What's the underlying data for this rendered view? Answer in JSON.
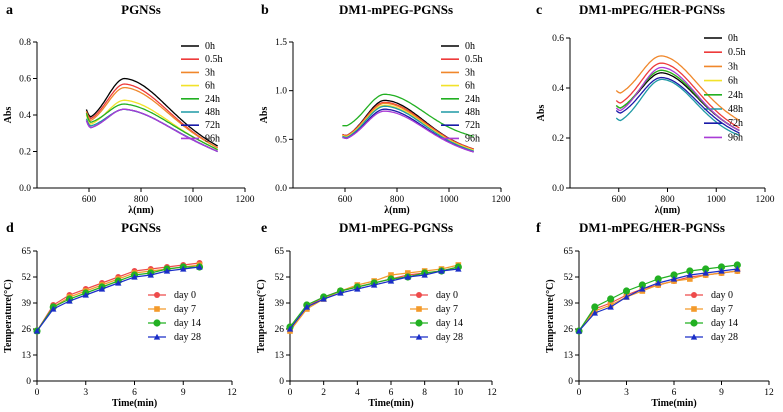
{
  "colors": {
    "0h": "#000000",
    "0.5h": "#ee3b3b",
    "3h": "#f0872b",
    "6h": "#f2e22a",
    "24h": "#22b022",
    "48h": "#1f9aa5",
    "72h": "#1a1aa8",
    "96h": "#a93cd6",
    "day 0": "#ee4b4b",
    "day 7": "#f39a2b",
    "day 14": "#22b022",
    "day 28": "#1a2ec8"
  },
  "chart_data": [
    {
      "id": "a",
      "panel_label": "a",
      "type": "line",
      "title": "PGNSs",
      "xlabel": "λ(nm)",
      "ylabel": "Abs",
      "xlim": [
        400,
        1200
      ],
      "ylim": [
        0,
        0.8
      ],
      "xticks": [
        "600",
        "800",
        "1000",
        "1200"
      ],
      "yticks": [
        "0.0",
        "0.2",
        "0.4",
        "0.6",
        "0.8"
      ],
      "x_range": [
        590,
        1095
      ],
      "peak_x": 740,
      "series": [
        {
          "name": "0h",
          "start": 0.43,
          "min": 0.39,
          "peak": 0.61,
          "end": 0.23
        },
        {
          "name": "0.5h",
          "start": 0.42,
          "min": 0.38,
          "peak": 0.58,
          "end": 0.22
        },
        {
          "name": "3h",
          "start": 0.42,
          "min": 0.37,
          "peak": 0.56,
          "end": 0.22
        },
        {
          "name": "6h",
          "start": 0.4,
          "min": 0.35,
          "peak": 0.49,
          "end": 0.21
        },
        {
          "name": "24h",
          "start": 0.41,
          "min": 0.36,
          "peak": 0.47,
          "end": 0.21
        },
        {
          "name": "48h",
          "start": 0.38,
          "min": 0.34,
          "peak": 0.44,
          "end": 0.2
        },
        {
          "name": "72h",
          "start": 0.37,
          "min": 0.33,
          "peak": 0.44,
          "end": 0.2
        },
        {
          "name": "96h",
          "start": 0.37,
          "min": 0.33,
          "peak": 0.44,
          "end": 0.2
        }
      ]
    },
    {
      "id": "b",
      "panel_label": "b",
      "type": "line",
      "title": "DM1-mPEG-PGNSs",
      "xlabel": "λ(nm)",
      "ylabel": "Abs",
      "xlim": [
        400,
        1200
      ],
      "ylim": [
        0,
        1.5
      ],
      "xticks": [
        "600",
        "800",
        "1000",
        "1200"
      ],
      "yticks": [
        "0.0",
        "0.5",
        "1.0",
        "1.5"
      ],
      "x_range": [
        590,
        1095
      ],
      "peak_x": 755,
      "series": [
        {
          "name": "0h",
          "start": 0.55,
          "min": 0.54,
          "peak": 0.91,
          "end": 0.4
        },
        {
          "name": "0.5h",
          "start": 0.55,
          "min": 0.54,
          "peak": 0.89,
          "end": 0.4
        },
        {
          "name": "3h",
          "start": 0.54,
          "min": 0.53,
          "peak": 0.88,
          "end": 0.39
        },
        {
          "name": "6h",
          "start": 0.54,
          "min": 0.53,
          "peak": 0.86,
          "end": 0.39
        },
        {
          "name": "24h",
          "start": 0.64,
          "min": 0.64,
          "peak": 0.97,
          "end": 0.53
        },
        {
          "name": "48h",
          "start": 0.53,
          "min": 0.52,
          "peak": 0.85,
          "end": 0.38
        },
        {
          "name": "72h",
          "start": 0.52,
          "min": 0.51,
          "peak": 0.82,
          "end": 0.37
        },
        {
          "name": "96h",
          "start": 0.52,
          "min": 0.51,
          "peak": 0.8,
          "end": 0.37
        }
      ]
    },
    {
      "id": "c",
      "panel_label": "c",
      "type": "line",
      "title": "DM1-mPEG/HER-PGNSs",
      "xlabel": "λ(nm)",
      "ylabel": "Abs",
      "xlim": [
        400,
        1200
      ],
      "ylim": [
        0,
        0.6
      ],
      "xticks": [
        "600",
        "800",
        "1000",
        "1200"
      ],
      "yticks": [
        "0.0",
        "0.2",
        "0.4",
        "0.6"
      ],
      "x_range": [
        590,
        1095
      ],
      "peak_x": 780,
      "series": [
        {
          "name": "0h",
          "start": 0.33,
          "min": 0.32,
          "peak": 0.47,
          "end": 0.23
        },
        {
          "name": "0.5h",
          "start": 0.35,
          "min": 0.34,
          "peak": 0.51,
          "end": 0.24
        },
        {
          "name": "3h",
          "start": 0.39,
          "min": 0.38,
          "peak": 0.54,
          "end": 0.27
        },
        {
          "name": "6h",
          "start": 0.33,
          "min": 0.32,
          "peak": 0.48,
          "end": 0.23
        },
        {
          "name": "24h",
          "start": 0.33,
          "min": 0.32,
          "peak": 0.48,
          "end": 0.23
        },
        {
          "name": "48h",
          "start": 0.28,
          "min": 0.27,
          "peak": 0.44,
          "end": 0.21
        },
        {
          "name": "72h",
          "start": 0.31,
          "min": 0.3,
          "peak": 0.45,
          "end": 0.22
        },
        {
          "name": "96h",
          "start": 0.32,
          "min": 0.31,
          "peak": 0.49,
          "end": 0.23
        }
      ]
    },
    {
      "id": "d",
      "panel_label": "d",
      "type": "line",
      "title": "PGNSs",
      "xlabel": "Time(min)",
      "ylabel": "Temperature(°C)",
      "xlim": [
        0,
        12
      ],
      "ylim": [
        0,
        65
      ],
      "xticks": [
        "0",
        "3",
        "6",
        "9",
        "12"
      ],
      "yticks": [
        "0",
        "13",
        "26",
        "39",
        "52",
        "65"
      ],
      "x": [
        0,
        1,
        2,
        3,
        4,
        5,
        6,
        7,
        8,
        9,
        10
      ],
      "series": [
        {
          "name": "day 0",
          "marker": "circle",
          "values": [
            25,
            38,
            43,
            46,
            49,
            52,
            55,
            56,
            57,
            58,
            59
          ]
        },
        {
          "name": "day 7",
          "marker": "square",
          "values": [
            25,
            37,
            42,
            45,
            48,
            51,
            54,
            55,
            56,
            57,
            58
          ]
        },
        {
          "name": "day 14",
          "marker": "circle",
          "values": [
            25,
            37,
            41,
            44,
            47,
            50,
            53,
            54,
            56,
            57,
            57
          ]
        },
        {
          "name": "day 28",
          "marker": "triangle",
          "values": [
            25,
            36,
            40,
            43,
            46,
            49,
            52,
            53,
            55,
            56,
            57
          ]
        }
      ]
    },
    {
      "id": "e",
      "panel_label": "e",
      "type": "line",
      "title": "DM1-mPEG-PGNSs",
      "xlabel": "Time(min)",
      "ylabel": "Temperature(°C)",
      "xlim": [
        0,
        12
      ],
      "ylim": [
        0,
        65
      ],
      "xticks": [
        "0",
        "2",
        "4",
        "6",
        "8",
        "10",
        "12"
      ],
      "yticks": [
        "0",
        "13",
        "26",
        "39",
        "52",
        "65"
      ],
      "x": [
        0,
        1,
        2,
        3,
        4,
        5,
        6,
        7,
        8,
        9,
        10
      ],
      "series": [
        {
          "name": "day 0",
          "marker": "circle",
          "values": [
            26,
            37,
            42,
            45,
            47,
            49,
            51,
            53,
            54,
            55,
            57
          ]
        },
        {
          "name": "day 7",
          "marker": "square",
          "values": [
            25,
            36,
            41,
            45,
            48,
            50,
            53,
            54,
            55,
            56,
            58
          ]
        },
        {
          "name": "day 14",
          "marker": "circle",
          "values": [
            27,
            38,
            42,
            45,
            47,
            49,
            51,
            52,
            54,
            55,
            57
          ]
        },
        {
          "name": "day 28",
          "marker": "triangle",
          "values": [
            26,
            37,
            41,
            44,
            46,
            48,
            50,
            52,
            53,
            55,
            56
          ]
        }
      ]
    },
    {
      "id": "f",
      "panel_label": "f",
      "type": "line",
      "title": "DM1-mPEG/HER-PGNSs",
      "xlabel": "Time(min)",
      "ylabel": "Temperature(°C)",
      "xlim": [
        0,
        12
      ],
      "ylim": [
        0,
        65
      ],
      "xticks": [
        "0",
        "3",
        "6",
        "9",
        "12"
      ],
      "yticks": [
        "0",
        "13",
        "26",
        "39",
        "52",
        "65"
      ],
      "x": [
        0,
        1,
        2,
        3,
        4,
        5,
        6,
        7,
        8,
        9,
        10
      ],
      "series": [
        {
          "name": "day 0",
          "marker": "circle",
          "values": [
            25,
            36,
            39,
            43,
            46,
            48,
            50,
            52,
            53,
            54,
            55
          ]
        },
        {
          "name": "day 7",
          "marker": "square",
          "values": [
            25,
            35,
            38,
            42,
            45,
            48,
            50,
            51,
            53,
            54,
            55
          ]
        },
        {
          "name": "day 14",
          "marker": "circle",
          "values": [
            25,
            37,
            41,
            45,
            48,
            51,
            53,
            55,
            56,
            57,
            58
          ]
        },
        {
          "name": "day 28",
          "marker": "triangle",
          "values": [
            25,
            34,
            37,
            42,
            46,
            49,
            51,
            53,
            54,
            55,
            56
          ]
        }
      ]
    }
  ]
}
